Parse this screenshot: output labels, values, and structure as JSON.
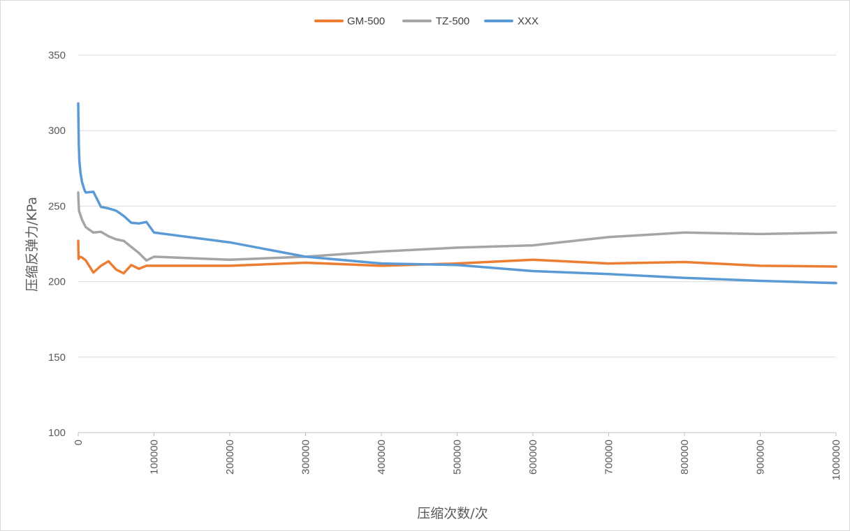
{
  "chart_data": {
    "type": "line",
    "xlabel": "压缩次数/次",
    "ylabel": "压缩反弹力/KPa",
    "xlim": [
      0,
      1000000
    ],
    "ylim": [
      100,
      350
    ],
    "x_ticks": [
      "0",
      "100000",
      "200000",
      "300000",
      "400000",
      "500000",
      "600000",
      "700000",
      "800000",
      "900000",
      "1000000"
    ],
    "x_tick_values": [
      0,
      100000,
      200000,
      300000,
      400000,
      500000,
      600000,
      700000,
      800000,
      900000,
      1000000
    ],
    "y_ticks": [
      "100",
      "150",
      "200",
      "250",
      "300",
      "350"
    ],
    "y_tick_values": [
      100,
      150,
      200,
      250,
      300,
      350
    ],
    "grid": "horizontal",
    "legend_position": "top",
    "series": [
      {
        "name": "GM-500",
        "color": "#ed7d31",
        "points": [
          [
            0,
            227
          ],
          [
            500,
            215
          ],
          [
            2000,
            216.5
          ],
          [
            5000,
            216
          ],
          [
            10000,
            214
          ],
          [
            15000,
            210
          ],
          [
            20000,
            206
          ],
          [
            30000,
            210.5
          ],
          [
            40000,
            213.5
          ],
          [
            50000,
            208
          ],
          [
            60000,
            205.5
          ],
          [
            70000,
            211
          ],
          [
            80000,
            208.5
          ],
          [
            90000,
            210.5
          ],
          [
            100000,
            210.5
          ],
          [
            200000,
            210.5
          ],
          [
            300000,
            212.5
          ],
          [
            400000,
            210.5
          ],
          [
            500000,
            212
          ],
          [
            600000,
            214.5
          ],
          [
            700000,
            212
          ],
          [
            800000,
            213
          ],
          [
            900000,
            210.5
          ],
          [
            1000000,
            210
          ]
        ]
      },
      {
        "name": "TZ-500",
        "color": "#a5a5a5",
        "points": [
          [
            0,
            259
          ],
          [
            500,
            252
          ],
          [
            1000,
            247
          ],
          [
            5000,
            241
          ],
          [
            10000,
            236
          ],
          [
            20000,
            232.5
          ],
          [
            30000,
            233
          ],
          [
            40000,
            230
          ],
          [
            50000,
            228
          ],
          [
            60000,
            227
          ],
          [
            70000,
            223
          ],
          [
            80000,
            219
          ],
          [
            90000,
            214
          ],
          [
            100000,
            216.5
          ],
          [
            200000,
            214.5
          ],
          [
            300000,
            216.5
          ],
          [
            400000,
            220
          ],
          [
            500000,
            222.5
          ],
          [
            600000,
            224
          ],
          [
            700000,
            229.5
          ],
          [
            800000,
            232.5
          ],
          [
            900000,
            231.5
          ],
          [
            1000000,
            232.5
          ]
        ]
      },
      {
        "name": "XXX",
        "color": "#5b9bd5",
        "points": [
          [
            0,
            318
          ],
          [
            300,
            305
          ],
          [
            800,
            290
          ],
          [
            1500,
            280
          ],
          [
            3000,
            272
          ],
          [
            5000,
            266
          ],
          [
            8000,
            261
          ],
          [
            10000,
            259
          ],
          [
            20000,
            259.5
          ],
          [
            30000,
            249.5
          ],
          [
            40000,
            248.5
          ],
          [
            50000,
            247
          ],
          [
            60000,
            243.5
          ],
          [
            70000,
            239
          ],
          [
            80000,
            238.5
          ],
          [
            90000,
            239.5
          ],
          [
            100000,
            232.5
          ],
          [
            200000,
            226
          ],
          [
            300000,
            216.5
          ],
          [
            400000,
            212
          ],
          [
            500000,
            211
          ],
          [
            600000,
            207
          ],
          [
            700000,
            205
          ],
          [
            800000,
            202.5
          ],
          [
            900000,
            200.5
          ],
          [
            1000000,
            199
          ]
        ]
      }
    ]
  }
}
